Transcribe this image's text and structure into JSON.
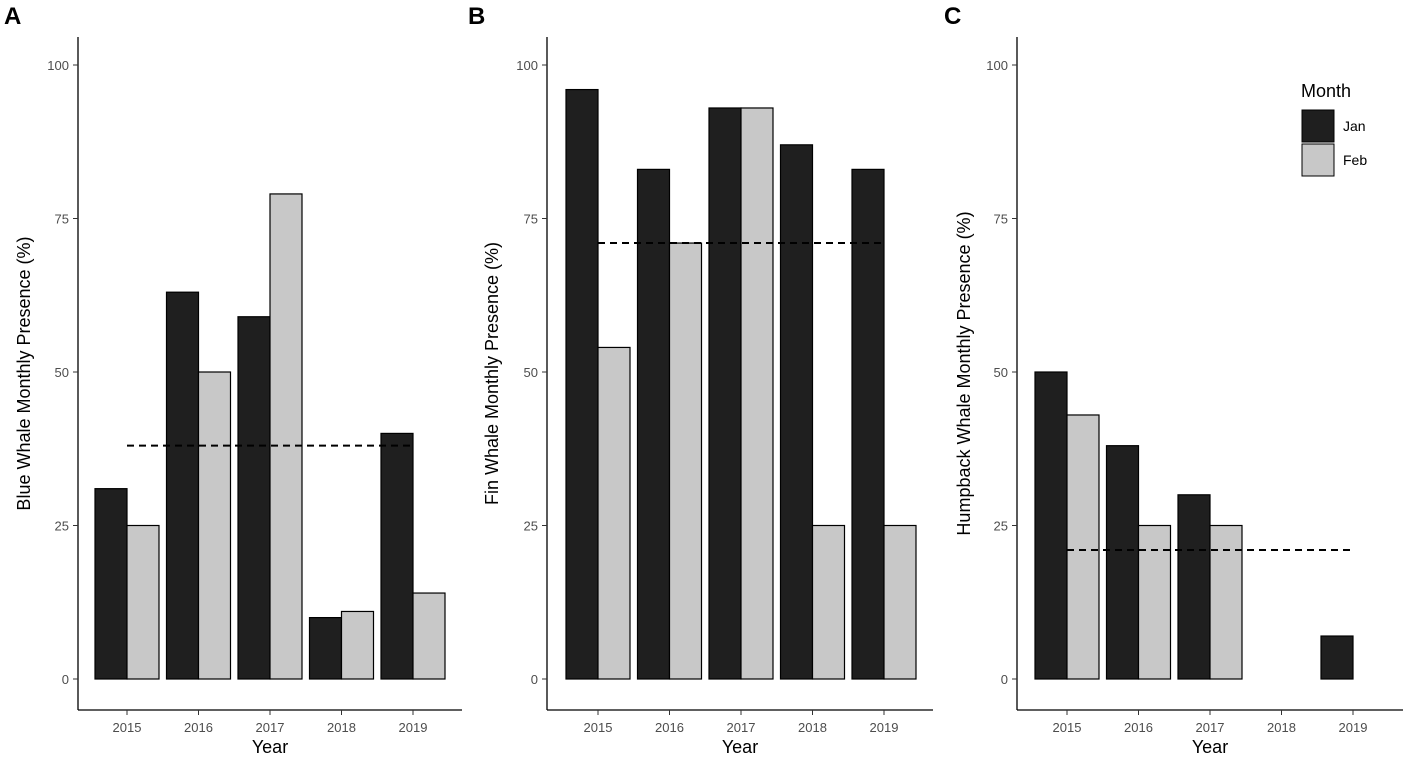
{
  "legend": {
    "title": "Month",
    "items": [
      {
        "label": "Jan",
        "color": "#1f1f1f"
      },
      {
        "label": "Feb",
        "color": "#c8c8c8"
      }
    ]
  },
  "chart_data": [
    {
      "type": "bar",
      "panel": "A",
      "categories": [
        "2015",
        "2016",
        "2017",
        "2018",
        "2019"
      ],
      "series": [
        {
          "name": "Jan",
          "values": [
            31,
            63,
            59,
            10,
            40
          ]
        },
        {
          "name": "Feb",
          "values": [
            25,
            50,
            79,
            11,
            14
          ]
        }
      ],
      "reference_line": 38,
      "xlabel": "Year",
      "ylabel": "Blue Whale Monthly Presence (%)",
      "ylim": [
        0,
        100
      ],
      "yticks": [
        0,
        25,
        50,
        75,
        100
      ]
    },
    {
      "type": "bar",
      "panel": "B",
      "categories": [
        "2015",
        "2016",
        "2017",
        "2018",
        "2019"
      ],
      "series": [
        {
          "name": "Jan",
          "values": [
            96,
            83,
            93,
            87,
            83
          ]
        },
        {
          "name": "Feb",
          "values": [
            54,
            71,
            93,
            25,
            25
          ]
        }
      ],
      "reference_line": 71,
      "xlabel": "Year",
      "ylabel": "Fin Whale Monthly Presence (%)",
      "ylim": [
        0,
        100
      ],
      "yticks": [
        0,
        25,
        50,
        75,
        100
      ]
    },
    {
      "type": "bar",
      "panel": "C",
      "categories": [
        "2015",
        "2016",
        "2017",
        "2018",
        "2019"
      ],
      "series": [
        {
          "name": "Jan",
          "values": [
            50,
            38,
            30,
            0,
            7
          ]
        },
        {
          "name": "Feb",
          "values": [
            43,
            25,
            25,
            0,
            0
          ]
        }
      ],
      "reference_line": 21,
      "xlabel": "Year",
      "ylabel": "Humpback Whale Monthly Presence (%)",
      "ylim": [
        0,
        100
      ],
      "yticks": [
        0,
        25,
        50,
        75,
        100
      ]
    }
  ]
}
